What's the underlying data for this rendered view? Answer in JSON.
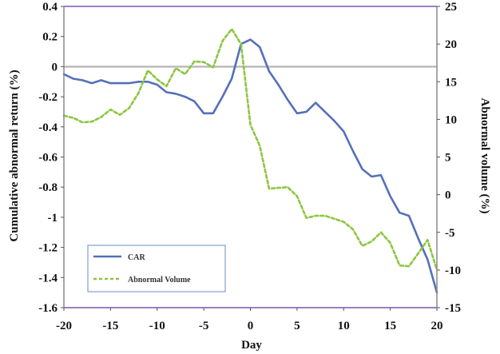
{
  "chart_data": {
    "type": "line",
    "xlabel": "Day",
    "ylabel": "Cumulative abnormal return (%)",
    "y2label": "Abnormal volume (%)",
    "xlim": [
      -20,
      20
    ],
    "ylim": [
      -1.6,
      0.4
    ],
    "y2lim": [
      -15,
      25
    ],
    "xticks": [
      -20,
      -15,
      -10,
      -5,
      0,
      5,
      10,
      15,
      20
    ],
    "yticks": [
      0.4,
      0.2,
      0,
      -0.2,
      -0.4,
      -0.6,
      -0.8,
      -1,
      -1.2,
      -1.4,
      -1.6
    ],
    "y2ticks": [
      25,
      20,
      15,
      10,
      5,
      0,
      -5,
      -10,
      -15
    ],
    "reference_line": {
      "y": 0,
      "color": "#b8b8b8"
    },
    "frame_color": "#9b7fc7",
    "grid": false,
    "legend": "bottom-left",
    "series": [
      {
        "name": "CAR",
        "axis": "left",
        "color": "#5470b8",
        "style": "solid",
        "x": [
          -20,
          -19,
          -18,
          -17,
          -16,
          -15,
          -14,
          -13,
          -12,
          -11,
          -10,
          -9,
          -8,
          -7,
          -6,
          -5,
          -4,
          -3,
          -2,
          -1,
          0,
          1,
          2,
          3,
          4,
          5,
          6,
          7,
          8,
          9,
          10,
          11,
          12,
          13,
          14,
          15,
          16,
          17,
          18,
          19,
          20
        ],
        "values": [
          -0.05,
          -0.08,
          -0.09,
          -0.11,
          -0.09,
          -0.11,
          -0.11,
          -0.11,
          -0.1,
          -0.1,
          -0.12,
          -0.17,
          -0.18,
          -0.2,
          -0.23,
          -0.31,
          -0.31,
          -0.2,
          -0.08,
          0.15,
          0.18,
          0.13,
          -0.03,
          -0.12,
          -0.22,
          -0.31,
          -0.3,
          -0.24,
          -0.3,
          -0.36,
          -0.43,
          -0.56,
          -0.68,
          -0.73,
          -0.72,
          -0.86,
          -0.97,
          -0.99,
          -1.14,
          -1.28,
          -1.5
        ]
      },
      {
        "name": "Abnormal Volume",
        "axis": "right",
        "color": "#8cc63f",
        "style": "dashed",
        "x": [
          -20,
          -19,
          -18,
          -17,
          -16,
          -15,
          -14,
          -13,
          -12,
          -11,
          -10,
          -9,
          -8,
          -7,
          -6,
          -5,
          -4,
          -3,
          -2,
          -1,
          0,
          1,
          2,
          3,
          4,
          5,
          6,
          7,
          8,
          9,
          10,
          11,
          12,
          13,
          14,
          15,
          16,
          17,
          18,
          19,
          20
        ],
        "values": [
          10.5,
          10.2,
          9.6,
          9.7,
          10.3,
          11.3,
          10.6,
          11.5,
          13.5,
          16.5,
          15.3,
          14.4,
          16.8,
          16,
          17.7,
          17.6,
          16.9,
          20.4,
          22,
          20,
          9.3,
          6.5,
          0.8,
          0.9,
          1,
          -0.2,
          -3.1,
          -2.8,
          -2.8,
          -3.2,
          -3.6,
          -4.6,
          -6.8,
          -6.2,
          -5,
          -6.4,
          -9.4,
          -9.5,
          -7.8,
          -6,
          -10
        ]
      }
    ]
  }
}
